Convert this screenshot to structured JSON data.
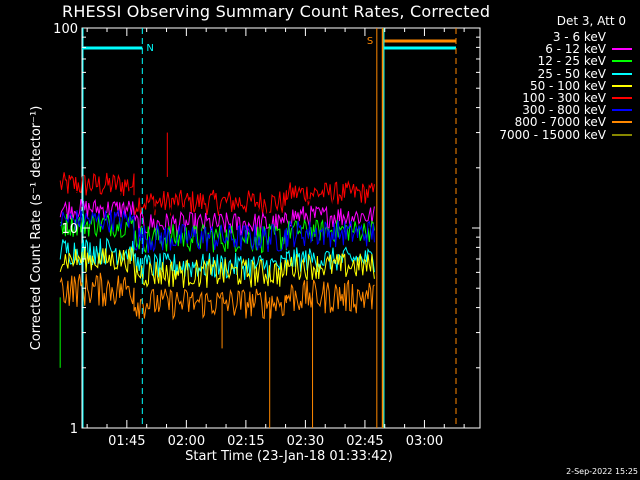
{
  "chart_data": {
    "type": "line",
    "title": "RHESSI Observing Summary Count Rates, Corrected",
    "xlabel": "Start Time (23-Jan-18 01:33:42)",
    "ylabel": "Corrected Count Rate (s⁻¹ detector⁻¹)",
    "yscale": "log",
    "ylim": [
      1,
      100
    ],
    "xlim": [
      "01:33:42",
      "03:14:00"
    ],
    "x_ticks": [
      "01:45",
      "02:00",
      "02:15",
      "02:30",
      "02:45",
      "03:00"
    ],
    "y_ticks": [
      "1",
      "10",
      "100"
    ],
    "legend_title": "Det 3, Att 0",
    "series": [
      {
        "name": "3 - 6 keV",
        "color": "#000000"
      },
      {
        "name": "6 - 12 keV",
        "color": "#ff00ff"
      },
      {
        "name": "12 - 25 keV",
        "color": "#00ff00"
      },
      {
        "name": "25 - 50 keV",
        "color": "#00ffff"
      },
      {
        "name": "50 - 100 keV",
        "color": "#ffff00"
      },
      {
        "name": "100 - 300 keV",
        "color": "#ff0000"
      },
      {
        "name": "300 - 800 keV",
        "color": "#0000ff"
      },
      {
        "name": "800 - 7000 keV",
        "color": "#ff8800"
      },
      {
        "name": "7000 - 15000 keV",
        "color": "#888800"
      }
    ],
    "bands": [
      {
        "color": "#ff0000",
        "segments": [
          [
            1.47,
            1.78,
            14,
            19
          ],
          [
            1.78,
            2.42,
            11.5,
            15.5
          ],
          [
            2.42,
            2.62,
            13,
            17
          ],
          [
            2.62,
            2.79,
            13,
            17
          ]
        ]
      },
      {
        "color": "#000000",
        "segments": [
          [
            1.47,
            1.78,
            11.5,
            16
          ],
          [
            1.78,
            2.42,
            9.5,
            13
          ],
          [
            2.42,
            2.79,
            10.5,
            14
          ]
        ]
      },
      {
        "color": "#ff00ff",
        "segments": [
          [
            1.47,
            1.78,
            11,
            14
          ],
          [
            1.78,
            2.42,
            9,
            12
          ],
          [
            2.42,
            2.79,
            10,
            13
          ]
        ]
      },
      {
        "color": "#00ff00",
        "segments": [
          [
            1.47,
            1.78,
            9,
            12
          ],
          [
            1.78,
            2.42,
            7.5,
            10.5
          ],
          [
            2.42,
            2.79,
            8.5,
            11
          ]
        ]
      },
      {
        "color": "#0000ff",
        "segments": [
          [
            1.47,
            1.78,
            9.5,
            12.5
          ],
          [
            1.78,
            2.42,
            7.5,
            10.5
          ],
          [
            2.42,
            2.79,
            8,
            11
          ]
        ]
      },
      {
        "color": "#00ffff",
        "segments": [
          [
            1.47,
            1.78,
            6.5,
            9
          ],
          [
            1.78,
            2.42,
            5.5,
            7.5
          ],
          [
            2.42,
            2.79,
            6,
            8
          ]
        ]
      },
      {
        "color": "#ffff00",
        "segments": [
          [
            1.47,
            1.78,
            6,
            8
          ],
          [
            1.78,
            2.42,
            5,
            7
          ],
          [
            2.42,
            2.79,
            5.5,
            7.5
          ]
        ]
      },
      {
        "color": "#ff8800",
        "segments": [
          [
            1.47,
            1.78,
            4,
            6
          ],
          [
            1.78,
            2.42,
            3.5,
            5
          ],
          [
            2.42,
            2.79,
            3.7,
            5.5
          ]
        ]
      }
    ],
    "spikes": [
      {
        "color": "#ff0000",
        "x": 1.92,
        "y": 30
      },
      {
        "color": "#ff8800",
        "x": 2.35,
        "y": 1
      },
      {
        "color": "#ff8800",
        "x": 2.53,
        "y": 1
      },
      {
        "color": "#ff8800",
        "x": 2.15,
        "y": 2.5
      },
      {
        "color": "#00ff00",
        "x": 1.47,
        "y": 2
      }
    ],
    "markers": {
      "night_label": "N",
      "saa_label": "S",
      "night_color": "#00ffff",
      "saa_color": "#ff8800"
    }
  },
  "footer_date": "2-Sep-2022 15:25"
}
